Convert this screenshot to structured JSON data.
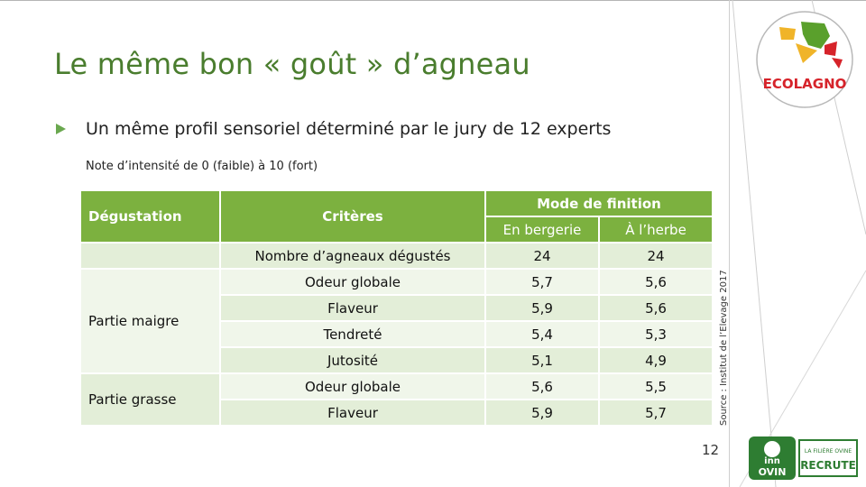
{
  "title": "Le même bon « goût » d’agneau",
  "bullet": "Un même profil sensoriel déterminé par le jury de 12 experts",
  "note": "Note d’intensité de 0 (faible) à 10 (fort)",
  "table": {
    "headers": {
      "degustation": "Dégustation",
      "criteres": "Critères",
      "mode": "Mode de finition",
      "bergerie": "En bergerie",
      "herbe": "À l’herbe"
    },
    "groups": {
      "maigre": "Partie maigre",
      "grasse": "Partie grasse"
    },
    "rows": [
      {
        "critere": "Nombre d’agneaux dégustés",
        "bergerie": "24",
        "herbe": "24"
      },
      {
        "critere": "Odeur globale",
        "bergerie": "5,7",
        "herbe": "5,6"
      },
      {
        "critere": "Flaveur",
        "bergerie": "5,9",
        "herbe": "5,6"
      },
      {
        "critere": "Tendreté",
        "bergerie": "5,4",
        "herbe": "5,3"
      },
      {
        "critere": "Jutosité",
        "bergerie": "5,1",
        "herbe": "4,9"
      },
      {
        "critere": "Odeur globale",
        "bergerie": "5,6",
        "herbe": "5,5"
      },
      {
        "critere": "Flaveur",
        "bergerie": "5,9",
        "herbe": "5,7"
      }
    ]
  },
  "source": "Source : Institut de l’Elevage 2017",
  "page_number": "12",
  "logos": {
    "ecolagno_text": "ECOLAGNO",
    "inn_line1": "inn",
    "inn_line2": "OVIN",
    "recrute_line1": "LA FILIÈRE OVINE",
    "recrute_line2": "RECRUTE"
  },
  "colors": {
    "title_green": "#4a7d2e",
    "header_green": "#7cb13f",
    "row_light": "#e3eed8",
    "row_lighter": "#f0f6ea"
  }
}
